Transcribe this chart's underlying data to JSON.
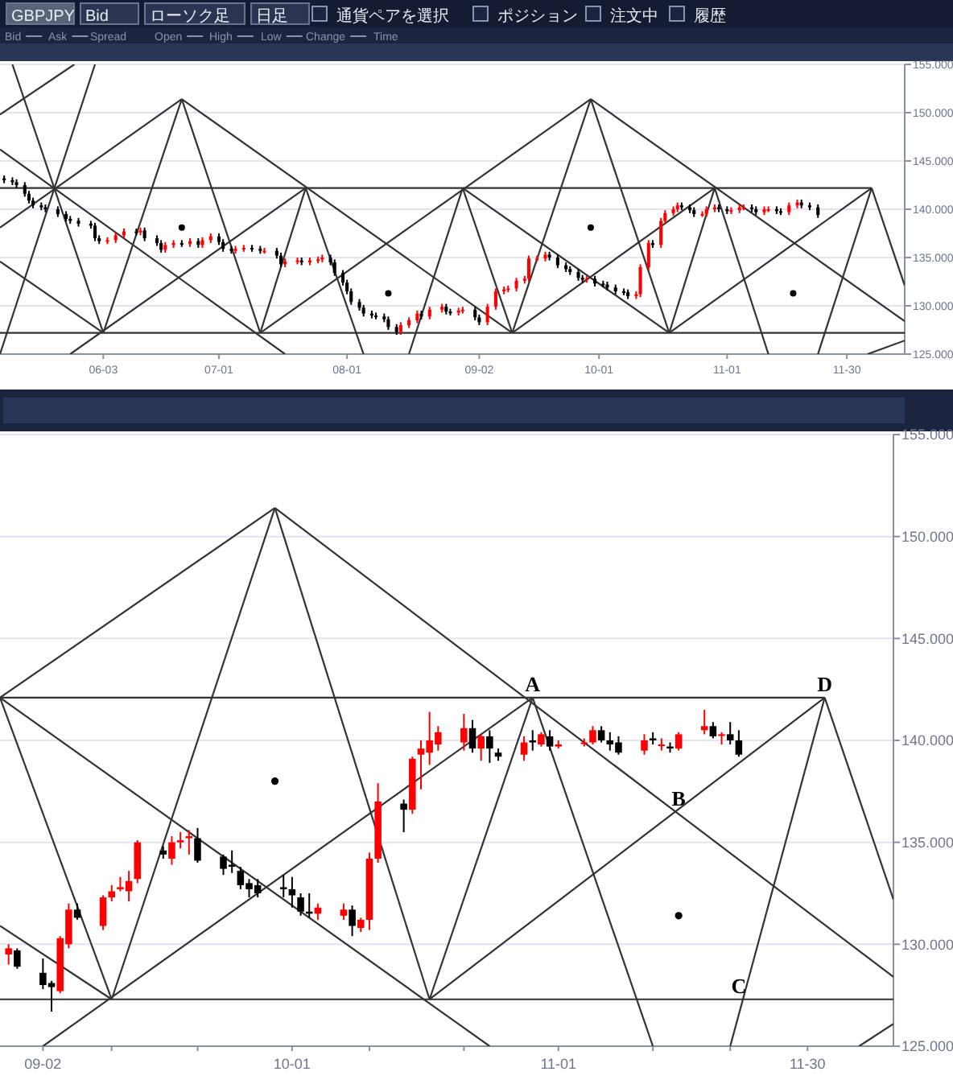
{
  "chart_data": [
    {
      "type": "other",
      "annotations": [
        "GBPJPY",
        "Bid",
        "ローソク足",
        "日足",
        "通貨ペアを選択",
        "ポジション",
        "注文中",
        "履歴",
        "Bid",
        "Ask",
        "Spread",
        "Open",
        "High",
        "Low",
        "Change",
        "Time"
      ]
    },
    {
      "type": "candlestick",
      "xlim": [
        "--05-09",
        "--12-14"
      ],
      "ylim": [
        125,
        155
      ],
      "grid": "y",
      "xticks": [
        {
          "value": "--06-03",
          "label": "06-03"
        },
        {
          "value": "--07-01",
          "label": "07-01"
        },
        {
          "value": "--08-01",
          "label": "08-01"
        },
        {
          "value": "--09-02",
          "label": "09-02"
        },
        {
          "value": "--10-01",
          "label": "10-01"
        },
        {
          "value": "--11-01",
          "label": "11-01"
        },
        {
          "value": "--11-30",
          "label": "11-30"
        }
      ],
      "yticks": [
        {
          "value": 125,
          "label": "125.000"
        },
        {
          "value": 130,
          "label": "130.000"
        },
        {
          "value": 135,
          "label": "135.000"
        },
        {
          "value": 140,
          "label": "140.000"
        },
        {
          "value": 145,
          "label": "145.000"
        },
        {
          "value": 150,
          "label": "150.000"
        },
        {
          "value": 155,
          "label": "155.000"
        }
      ],
      "x": [
        "--05-10",
        "--05-12",
        "--05-13",
        "--05-15",
        "--05-16",
        "--05-17",
        "--05-19",
        "--05-20",
        "--05-23",
        "--05-25",
        "--05-26",
        "--05-28",
        "--05-31",
        "--06-01",
        "--06-02",
        "--06-04",
        "--06-06",
        "--06-08",
        "--06-11",
        "--06-12",
        "--06-13",
        "--06-16",
        "--06-17",
        "--06-18",
        "--06-20",
        "--06-22",
        "--06-24",
        "--06-26",
        "--06-27",
        "--06-29",
        "--07-01",
        "--07-02",
        "--07-04",
        "--07-05",
        "--07-07",
        "--07-09",
        "--07-11",
        "--07-12",
        "--07-15",
        "--07-16",
        "--07-17",
        "--07-20",
        "--07-21",
        "--07-23",
        "--07-25",
        "--07-26",
        "--07-28",
        "--07-29",
        "--07-31",
        "--08-01",
        "--08-02",
        "--08-04",
        "--08-05",
        "--08-07",
        "--08-08",
        "--08-10",
        "--08-11",
        "--08-13",
        "--08-14",
        "--08-16",
        "--08-18",
        "--08-19",
        "--08-21",
        "--08-24",
        "--08-25",
        "--08-26",
        "--08-28",
        "--08-29",
        "--09-01",
        "--09-02",
        "--09-04",
        "--09-06",
        "--09-08",
        "--09-09",
        "--09-11",
        "--09-13",
        "--09-14",
        "--09-16",
        "--09-18",
        "--09-19",
        "--09-21",
        "--09-23",
        "--09-24",
        "--09-26",
        "--09-27",
        "--09-28",
        "--09-30",
        "--10-02",
        "--10-03",
        "--10-05",
        "--10-07",
        "--10-08",
        "--10-10",
        "--10-11",
        "--10-13",
        "--10-14",
        "--10-16",
        "--10-17",
        "--10-19",
        "--10-20",
        "--10-21",
        "--10-23",
        "--10-24",
        "--10-26",
        "--10-27",
        "--10-29",
        "--10-30",
        "--11-01",
        "--11-02",
        "--11-04",
        "--11-05",
        "--11-07",
        "--11-08",
        "--11-10",
        "--11-11",
        "--11-13",
        "--11-14",
        "--11-16",
        "--11-18",
        "--11-19",
        "--11-21",
        "--11-23"
      ],
      "ohlc": [
        [
          143.2,
          143.5,
          142.7,
          143.0
        ],
        [
          143.0,
          143.3,
          142.5,
          142.8
        ],
        [
          142.8,
          143.1,
          142.2,
          142.5
        ],
        [
          142.5,
          142.8,
          141.3,
          141.6
        ],
        [
          141.6,
          141.9,
          140.6,
          140.9
        ],
        [
          140.9,
          141.2,
          140.1,
          140.4
        ],
        [
          140.4,
          140.7,
          139.9,
          140.2
        ],
        [
          140.2,
          140.5,
          139.7,
          140.0
        ],
        [
          140.0,
          140.3,
          139.2,
          139.5
        ],
        [
          139.5,
          139.8,
          138.7,
          139.0
        ],
        [
          139.0,
          139.3,
          138.5,
          138.8
        ],
        [
          138.8,
          139.1,
          138.2,
          138.5
        ],
        [
          138.5,
          138.8,
          138.0,
          138.3
        ],
        [
          138.3,
          138.6,
          136.7,
          137.0
        ],
        [
          137.0,
          137.3,
          136.4,
          136.7
        ],
        [
          136.7,
          137.1,
          136.4,
          136.8
        ],
        [
          136.8,
          137.6,
          136.5,
          137.3
        ],
        [
          137.3,
          138.0,
          137.0,
          137.7
        ],
        [
          137.7,
          138.0,
          137.3,
          137.6
        ],
        [
          137.6,
          138.1,
          137.3,
          137.8
        ],
        [
          137.8,
          138.1,
          136.7,
          137.0
        ],
        [
          137.0,
          137.3,
          136.2,
          136.5
        ],
        [
          136.5,
          136.8,
          135.5,
          135.8
        ],
        [
          135.8,
          136.6,
          135.5,
          136.3
        ],
        [
          136.3,
          136.8,
          136.0,
          136.5
        ],
        [
          136.5,
          136.8,
          136.1,
          136.4
        ],
        [
          136.4,
          137.0,
          136.1,
          136.7
        ],
        [
          136.7,
          137.0,
          136.0,
          136.3
        ],
        [
          136.3,
          137.1,
          136.0,
          136.8
        ],
        [
          136.8,
          137.5,
          136.5,
          137.2
        ],
        [
          137.2,
          137.5,
          136.3,
          136.6
        ],
        [
          136.6,
          136.9,
          135.6,
          135.9
        ],
        [
          135.9,
          136.2,
          135.4,
          135.7
        ],
        [
          135.7,
          136.2,
          135.4,
          135.9
        ],
        [
          135.9,
          136.3,
          135.6,
          136.0
        ],
        [
          136.0,
          136.3,
          135.6,
          135.9
        ],
        [
          135.9,
          136.2,
          135.4,
          135.7
        ],
        [
          135.7,
          136.0,
          135.4,
          135.7
        ],
        [
          135.7,
          136.0,
          134.9,
          135.2
        ],
        [
          135.2,
          135.5,
          134.0,
          134.3
        ],
        [
          134.3,
          134.9,
          134.0,
          134.6
        ],
        [
          134.6,
          135.0,
          134.3,
          134.7
        ],
        [
          134.7,
          135.0,
          134.2,
          134.5
        ],
        [
          134.5,
          135.0,
          134.2,
          134.7
        ],
        [
          134.7,
          135.1,
          134.4,
          134.8
        ],
        [
          134.8,
          135.3,
          134.5,
          135.0
        ],
        [
          135.0,
          135.3,
          134.2,
          134.5
        ],
        [
          134.5,
          134.8,
          133.1,
          133.4
        ],
        [
          133.4,
          133.7,
          132.1,
          132.4
        ],
        [
          132.4,
          132.7,
          131.2,
          131.5
        ],
        [
          131.5,
          131.8,
          130.1,
          130.4
        ],
        [
          130.4,
          130.7,
          129.5,
          129.8
        ],
        [
          129.8,
          130.1,
          128.9,
          129.2
        ],
        [
          129.2,
          129.5,
          128.7,
          129.0
        ],
        [
          129.0,
          129.3,
          128.6,
          128.9
        ],
        [
          128.9,
          129.2,
          128.3,
          128.6
        ],
        [
          128.6,
          128.9,
          127.5,
          127.8
        ],
        [
          127.8,
          128.1,
          127.0,
          127.3
        ],
        [
          127.3,
          128.3,
          127.0,
          128.0
        ],
        [
          128.0,
          128.8,
          127.7,
          128.5
        ],
        [
          128.5,
          129.5,
          128.2,
          129.2
        ],
        [
          129.2,
          129.5,
          128.6,
          128.9
        ],
        [
          128.9,
          129.9,
          128.6,
          129.6
        ],
        [
          129.6,
          130.2,
          129.3,
          129.9
        ],
        [
          129.9,
          130.2,
          129.1,
          129.4
        ],
        [
          129.4,
          129.7,
          129.0,
          129.3
        ],
        [
          129.3,
          129.8,
          129.0,
          129.5
        ],
        [
          129.5,
          129.9,
          129.2,
          129.6
        ],
        [
          129.6,
          129.9,
          128.5,
          128.8
        ],
        [
          128.8,
          129.1,
          128.0,
          128.3
        ],
        [
          128.3,
          130.2,
          128.0,
          129.9
        ],
        [
          129.9,
          131.8,
          129.6,
          131.5
        ],
        [
          131.5,
          132.0,
          131.2,
          131.7
        ],
        [
          131.7,
          132.1,
          131.4,
          131.8
        ],
        [
          131.8,
          132.9,
          131.5,
          132.6
        ],
        [
          132.6,
          133.1,
          132.3,
          132.8
        ],
        [
          132.8,
          135.2,
          132.5,
          134.9
        ],
        [
          134.9,
          135.2,
          134.6,
          134.9
        ],
        [
          134.9,
          135.6,
          134.6,
          135.3
        ],
        [
          135.3,
          135.6,
          134.7,
          135.0
        ],
        [
          135.0,
          135.3,
          133.9,
          134.2
        ],
        [
          134.2,
          134.5,
          133.5,
          133.8
        ],
        [
          133.8,
          134.1,
          133.2,
          133.5
        ],
        [
          133.5,
          133.8,
          132.6,
          132.9
        ],
        [
          132.9,
          133.2,
          132.4,
          132.7
        ],
        [
          132.7,
          133.1,
          132.4,
          132.8
        ],
        [
          132.8,
          133.1,
          132.0,
          132.3
        ],
        [
          132.3,
          132.6,
          131.9,
          132.2
        ],
        [
          132.2,
          132.5,
          131.6,
          131.9
        ],
        [
          131.9,
          132.2,
          131.2,
          131.5
        ],
        [
          131.5,
          131.8,
          131.1,
          131.4
        ],
        [
          131.4,
          131.7,
          130.7,
          131.0
        ],
        [
          131.0,
          131.5,
          130.7,
          131.2
        ],
        [
          131.2,
          134.3,
          130.9,
          134.0
        ],
        [
          134.0,
          136.8,
          133.7,
          136.5
        ],
        [
          136.5,
          136.8,
          136.0,
          136.3
        ],
        [
          136.3,
          139.1,
          136.0,
          138.8
        ],
        [
          138.8,
          139.9,
          138.5,
          139.6
        ],
        [
          139.6,
          140.3,
          139.3,
          140.0
        ],
        [
          140.0,
          140.7,
          139.7,
          140.4
        ],
        [
          140.4,
          140.7,
          139.9,
          140.2
        ],
        [
          140.2,
          140.5,
          139.6,
          139.9
        ],
        [
          139.9,
          140.2,
          139.2,
          139.5
        ],
        [
          139.5,
          139.8,
          139.2,
          139.5
        ],
        [
          139.5,
          140.3,
          139.2,
          140.0
        ],
        [
          140.0,
          140.5,
          139.7,
          140.2
        ],
        [
          140.2,
          140.5,
          139.7,
          140.0
        ],
        [
          140.0,
          140.3,
          139.5,
          139.8
        ],
        [
          139.8,
          140.2,
          139.5,
          139.9
        ],
        [
          139.9,
          140.5,
          139.6,
          140.2
        ],
        [
          140.2,
          140.5,
          139.9,
          140.2
        ],
        [
          140.2,
          140.5,
          139.7,
          140.0
        ],
        [
          140.0,
          140.3,
          139.4,
          139.7
        ],
        [
          139.7,
          140.3,
          139.4,
          140.0
        ],
        [
          140.0,
          140.3,
          139.7,
          140.0
        ],
        [
          140.0,
          140.3,
          139.5,
          139.8
        ],
        [
          139.8,
          140.1,
          139.4,
          139.7
        ],
        [
          139.7,
          140.7,
          139.4,
          140.4
        ],
        [
          140.4,
          141.0,
          140.1,
          140.7
        ],
        [
          140.7,
          141.0,
          140.1,
          140.4
        ],
        [
          140.4,
          140.7,
          139.9,
          140.2
        ],
        [
          140.2,
          140.5,
          139.1,
          139.4
        ]
      ],
      "series": [
        {
          "type": "line",
          "color": "#333333",
          "x": [
            "--05-09",
            "--12-06"
          ],
          "values": [
            142.2,
            142.2
          ]
        },
        {
          "type": "line",
          "color": "#333333",
          "x": [
            "--05-09",
            "--12-14"
          ],
          "values": [
            127.2,
            127.2
          ]
        },
        {
          "type": "line",
          "color": "#333333",
          "x": [
            "--05-09",
            "--06-22"
          ],
          "values": [
            138.1,
            151.4
          ]
        },
        {
          "type": "line",
          "color": "#333333",
          "x": [
            "--06-22",
            "--09-10"
          ],
          "values": [
            151.4,
            127.2
          ]
        },
        {
          "type": "line",
          "color": "#333333",
          "x": [
            "--06-22",
            "--06-03"
          ],
          "values": [
            151.4,
            127.2
          ]
        },
        {
          "type": "line",
          "color": "#333333",
          "x": [
            "--06-22",
            "--07-11"
          ],
          "values": [
            151.4,
            127.2
          ]
        },
        {
          "type": "line",
          "color": "#333333",
          "x": [
            "--07-11",
            "--09-29"
          ],
          "values": [
            127.2,
            151.4
          ]
        },
        {
          "type": "line",
          "color": "#333333",
          "x": [
            "--09-29",
            "--12-14"
          ],
          "values": [
            151.4,
            128.4
          ]
        },
        {
          "type": "line",
          "color": "#333333",
          "x": [
            "--09-29",
            "--09-10"
          ],
          "values": [
            151.4,
            127.2
          ]
        },
        {
          "type": "line",
          "color": "#333333",
          "x": [
            "--09-29",
            "--10-18"
          ],
          "values": [
            151.4,
            127.2
          ]
        },
        {
          "type": "line",
          "color": "#333333",
          "x": [
            "--05-12",
            "--06-03"
          ],
          "values": [
            155,
            127.2
          ]
        },
        {
          "type": "line",
          "color": "#333333",
          "x": [
            "--06-01",
            "--05-09"
          ],
          "values": [
            155,
            125
          ]
        },
        {
          "type": "line",
          "color": "#333333",
          "x": [
            "--05-09",
            "--07-17"
          ],
          "values": [
            146.2,
            125
          ]
        },
        {
          "type": "line",
          "color": "#333333",
          "x": [
            "--07-22",
            "--05-26"
          ],
          "values": [
            142.2,
            125
          ]
        },
        {
          "type": "line",
          "color": "#333333",
          "x": [
            "--07-22",
            "--07-11"
          ],
          "values": [
            142.2,
            127.2
          ]
        },
        {
          "type": "line",
          "color": "#333333",
          "x": [
            "--07-22",
            "--08-05"
          ],
          "values": [
            142.2,
            125
          ]
        },
        {
          "type": "line",
          "color": "#333333",
          "x": [
            "--08-29",
            "--09-10"
          ],
          "values": [
            142.2,
            127.2
          ]
        },
        {
          "type": "line",
          "color": "#333333",
          "x": [
            "--08-29",
            "--08-16"
          ],
          "values": [
            142.2,
            125
          ]
        },
        {
          "type": "line",
          "color": "#333333",
          "x": [
            "--08-29",
            "--10-18"
          ],
          "values": [
            142.2,
            127.2
          ]
        },
        {
          "type": "line",
          "color": "#333333",
          "x": [
            "--09-10",
            "--10-29"
          ],
          "values": [
            127.2,
            142.2
          ]
        },
        {
          "type": "line",
          "color": "#333333",
          "x": [
            "--10-29",
            "--10-18"
          ],
          "values": [
            142.2,
            127.2
          ]
        },
        {
          "type": "line",
          "color": "#333333",
          "x": [
            "--10-29",
            "--11-11"
          ],
          "values": [
            142.2,
            125
          ]
        },
        {
          "type": "line",
          "color": "#333333",
          "x": [
            "--12-06",
            "--10-18"
          ],
          "values": [
            142.2,
            127.2
          ]
        },
        {
          "type": "line",
          "color": "#333333",
          "x": [
            "--12-06",
            "--11-23"
          ],
          "values": [
            142.2,
            125
          ]
        },
        {
          "type": "line",
          "color": "#333333",
          "x": [
            "--12-06",
            "--12-14"
          ],
          "values": [
            142.2,
            132.1
          ]
        },
        {
          "type": "line",
          "color": "#333333",
          "x": [
            "--12-05",
            "--12-14"
          ],
          "values": [
            125,
            126.4
          ]
        },
        {
          "type": "line",
          "color": "#333333",
          "x": [
            "--05-09",
            "--06-03"
          ],
          "values": [
            134.6,
            127.2
          ]
        },
        {
          "type": "line",
          "color": "#333333",
          "x": [
            "--05-27",
            "--05-09"
          ],
          "values": [
            155,
            149.8
          ]
        },
        {
          "type": "scatter",
          "color": "#000000",
          "x": [
            "--06-22",
            "--08-11",
            "--09-29",
            "--11-17"
          ],
          "values": [
            138.1,
            131.3,
            138.1,
            131.3
          ]
        }
      ]
    },
    {
      "type": "candlestick",
      "xlim": [
        "--08-28",
        "--12-10"
      ],
      "ylim": [
        125,
        155
      ],
      "grid": "y",
      "xticks": [
        {
          "value": "--09-02",
          "label": "09-02"
        },
        {
          "value": "--09-10",
          "label": null
        },
        {
          "value": "--09-20",
          "label": null
        },
        {
          "value": "--10-01",
          "label": "10-01"
        },
        {
          "value": "--10-10",
          "label": null
        },
        {
          "value": "--10-21",
          "label": null
        },
        {
          "value": "--11-01",
          "label": "11-01"
        },
        {
          "value": "--11-12",
          "label": null
        },
        {
          "value": "--11-21",
          "label": null
        },
        {
          "value": "--11-30",
          "label": "11-30"
        }
      ],
      "yticks": [
        {
          "value": 125,
          "label": "125.000"
        },
        {
          "value": 130,
          "label": "130.000"
        },
        {
          "value": 135,
          "label": "135.000"
        },
        {
          "value": 140,
          "label": "140.000"
        },
        {
          "value": 145,
          "label": "145.000"
        },
        {
          "value": 150,
          "label": "150.000"
        },
        {
          "value": 155,
          "label": "155.000"
        }
      ],
      "x": [
        "--08-29",
        "--08-30",
        "--09-02",
        "--09-03",
        "--09-04",
        "--09-05",
        "--09-06",
        "--09-09",
        "--09-10",
        "--09-11",
        "--09-12",
        "--09-13",
        "--09-16",
        "--09-17",
        "--09-18",
        "--09-19",
        "--09-20",
        "--09-23",
        "--09-24",
        "--09-25",
        "--09-26",
        "--09-27",
        "--09-30",
        "--10-01",
        "--10-02",
        "--10-03",
        "--10-04",
        "--10-07",
        "--10-08",
        "--10-09",
        "--10-10",
        "--10-11",
        "--10-14",
        "--10-15",
        "--10-16",
        "--10-17",
        "--10-18",
        "--10-21",
        "--10-22",
        "--10-23",
        "--10-24",
        "--10-25",
        "--10-28",
        "--10-29",
        "--10-30",
        "--10-31",
        "--11-01",
        "--11-04",
        "--11-05",
        "--11-06",
        "--11-07",
        "--11-08",
        "--11-11",
        "--11-12",
        "--11-13",
        "--11-14",
        "--11-15",
        "--11-18",
        "--11-19",
        "--11-20",
        "--11-21",
        "--11-22"
      ],
      "ohlc": [
        [
          129.5,
          130.0,
          129.0,
          129.8
        ],
        [
          129.7,
          129.8,
          128.8,
          128.9
        ],
        [
          128.6,
          129.3,
          127.8,
          128.0
        ],
        [
          128.1,
          128.2,
          126.7,
          127.9
        ],
        [
          127.7,
          130.4,
          127.6,
          130.3
        ],
        [
          130.0,
          132.0,
          129.8,
          131.7
        ],
        [
          131.7,
          132.0,
          131.2,
          131.3
        ],
        [
          130.9,
          132.4,
          130.7,
          132.3
        ],
        [
          132.3,
          132.9,
          132.1,
          132.6
        ],
        [
          132.7,
          133.3,
          132.6,
          132.8
        ],
        [
          132.6,
          133.6,
          132.1,
          133.1
        ],
        [
          133.2,
          135.1,
          133.0,
          135.0
        ],
        [
          134.6,
          134.8,
          134.2,
          134.4
        ],
        [
          134.2,
          135.3,
          133.9,
          135.0
        ],
        [
          135.0,
          135.5,
          134.7,
          135.1
        ],
        [
          135.2,
          135.6,
          134.4,
          135.3
        ],
        [
          135.2,
          135.7,
          134.0,
          134.1
        ],
        [
          134.3,
          134.4,
          133.4,
          133.7
        ],
        [
          133.9,
          134.6,
          133.5,
          133.8
        ],
        [
          133.6,
          133.8,
          132.7,
          132.9
        ],
        [
          133.0,
          133.2,
          132.3,
          132.7
        ],
        [
          132.9,
          133.2,
          132.3,
          132.5
        ],
        [
          132.8,
          133.4,
          132.3,
          132.7
        ],
        [
          132.7,
          133.3,
          131.8,
          132.4
        ],
        [
          132.3,
          132.5,
          131.4,
          131.6
        ],
        [
          131.6,
          132.5,
          131.3,
          131.5
        ],
        [
          131.5,
          132.0,
          131.2,
          131.8
        ],
        [
          131.4,
          132.0,
          131.2,
          131.7
        ],
        [
          131.7,
          131.9,
          130.4,
          130.9
        ],
        [
          130.8,
          131.3,
          130.6,
          131.2
        ],
        [
          131.2,
          134.5,
          130.7,
          134.2
        ],
        [
          134.2,
          137.9,
          134.0,
          137.0
        ],
        [
          136.9,
          137.1,
          135.5,
          136.6
        ],
        [
          136.6,
          139.2,
          136.4,
          139.1
        ],
        [
          139.3,
          140.0,
          137.6,
          139.6
        ],
        [
          139.4,
          141.4,
          138.8,
          140.0
        ],
        [
          139.8,
          140.7,
          139.5,
          140.4
        ],
        [
          139.9,
          141.3,
          139.5,
          140.6
        ],
        [
          140.6,
          141.0,
          139.4,
          139.6
        ],
        [
          139.6,
          140.3,
          139.0,
          140.2
        ],
        [
          140.2,
          140.5,
          138.9,
          139.6
        ],
        [
          139.4,
          139.6,
          139.0,
          139.2
        ],
        [
          139.3,
          140.2,
          139.0,
          139.9
        ],
        [
          140.0,
          140.5,
          139.5,
          139.9
        ],
        [
          139.8,
          140.4,
          139.7,
          140.3
        ],
        [
          140.2,
          140.5,
          139.5,
          139.7
        ],
        [
          139.7,
          140.0,
          139.6,
          139.8
        ],
        [
          139.9,
          140.1,
          139.7,
          139.9
        ],
        [
          139.9,
          140.7,
          139.8,
          140.5
        ],
        [
          140.5,
          140.7,
          139.9,
          140.0
        ],
        [
          140.0,
          140.4,
          139.5,
          139.8
        ],
        [
          139.9,
          140.2,
          139.3,
          139.4
        ],
        [
          139.5,
          140.3,
          139.3,
          140.0
        ],
        [
          140.1,
          140.4,
          139.8,
          140.0
        ],
        [
          139.8,
          140.1,
          139.5,
          139.8
        ],
        [
          139.7,
          139.9,
          139.4,
          139.6
        ],
        [
          139.6,
          140.4,
          139.5,
          140.3
        ],
        [
          140.5,
          141.5,
          140.3,
          140.7
        ],
        [
          140.7,
          140.9,
          140.1,
          140.2
        ],
        [
          140.3,
          140.4,
          139.8,
          140.3
        ],
        [
          140.3,
          140.9,
          139.8,
          140.0
        ],
        [
          140.0,
          140.5,
          139.2,
          139.3
        ]
      ],
      "series": [
        {
          "type": "line",
          "color": "#333333",
          "x": [
            "--08-28",
            "--12-02"
          ],
          "values": [
            142.1,
            142.1
          ]
        },
        {
          "type": "line",
          "color": "#333333",
          "x": [
            "--08-28",
            "--12-10"
          ],
          "values": [
            127.3,
            127.3
          ]
        },
        {
          "type": "line",
          "color": "#333333",
          "x": [
            "--08-28",
            "--09-29"
          ],
          "values": [
            142.1,
            151.4
          ]
        },
        {
          "type": "line",
          "color": "#333333",
          "x": [
            "--09-29",
            "--12-10"
          ],
          "values": [
            151.4,
            128.4
          ]
        },
        {
          "type": "line",
          "color": "#333333",
          "x": [
            "--09-29",
            "--09-10"
          ],
          "values": [
            151.4,
            127.3
          ]
        },
        {
          "type": "line",
          "color": "#333333",
          "x": [
            "--09-29",
            "--10-17"
          ],
          "values": [
            151.4,
            127.3
          ]
        },
        {
          "type": "line",
          "color": "#333333",
          "x": [
            "--08-28",
            "--09-10"
          ],
          "values": [
            142.1,
            127.3
          ]
        },
        {
          "type": "line",
          "color": "#333333",
          "x": [
            "--08-28",
            "--10-24"
          ],
          "values": [
            142.1,
            125.0
          ]
        },
        {
          "type": "line",
          "color": "#333333",
          "x": [
            "--10-29",
            "--09-02"
          ],
          "values": [
            142.1,
            125.0
          ]
        },
        {
          "type": "line",
          "color": "#333333",
          "x": [
            "--10-29",
            "--10-17"
          ],
          "values": [
            142.1,
            127.3
          ]
        },
        {
          "type": "line",
          "color": "#333333",
          "x": [
            "--10-29",
            "--11-12"
          ],
          "values": [
            142.1,
            125.0
          ]
        },
        {
          "type": "line",
          "color": "#333333",
          "x": [
            "--10-17",
            "--12-02"
          ],
          "values": [
            127.3,
            142.1
          ]
        },
        {
          "type": "line",
          "color": "#333333",
          "x": [
            "--12-02",
            "--11-21"
          ],
          "values": [
            142.1,
            125.0
          ]
        },
        {
          "type": "line",
          "color": "#333333",
          "x": [
            "--12-02",
            "--12-10"
          ],
          "values": [
            142.1,
            132.2
          ]
        },
        {
          "type": "line",
          "color": "#333333",
          "x": [
            "--08-28",
            "--09-10"
          ],
          "values": [
            130.9,
            127.3
          ]
        },
        {
          "type": "line",
          "color": "#333333",
          "x": [
            "--12-06",
            "--12-10"
          ],
          "values": [
            125.0,
            126.1
          ]
        },
        {
          "type": "scatter",
          "color": "#000000",
          "x": [
            "--09-29",
            "--11-15"
          ],
          "values": [
            138.0,
            131.4
          ]
        }
      ],
      "annotations": [
        {
          "text": "A",
          "x": "--10-29",
          "y": 142.1
        },
        {
          "text": "B",
          "x": "--11-15",
          "y": 136.5
        },
        {
          "text": "C",
          "x": "--11-22",
          "y": 127.3
        },
        {
          "text": "D",
          "x": "--12-02",
          "y": 142.1
        }
      ]
    }
  ]
}
